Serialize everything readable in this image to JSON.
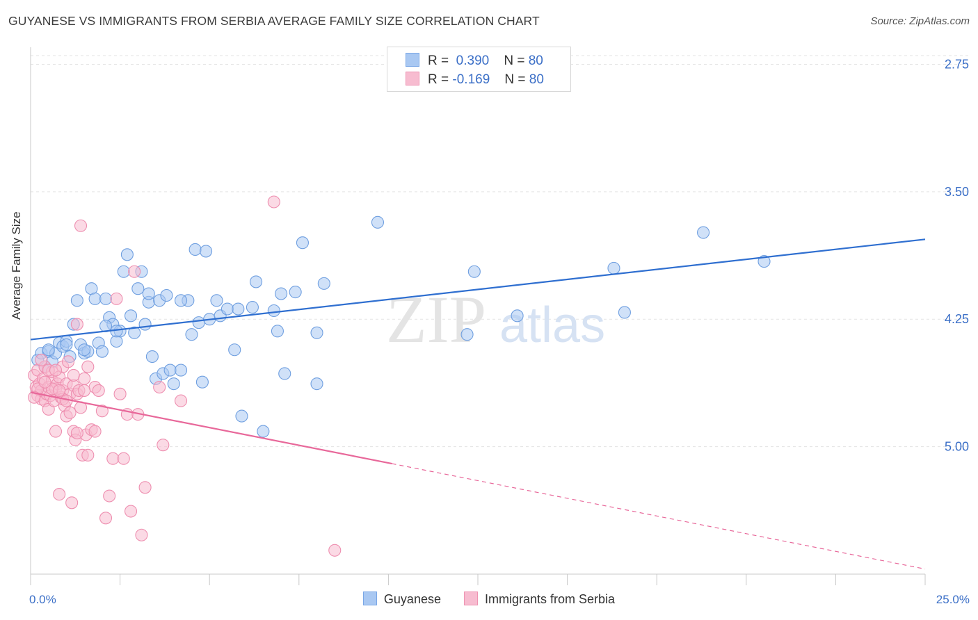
{
  "header": {
    "title": "GUYANESE VS IMMIGRANTS FROM SERBIA AVERAGE FAMILY SIZE CORRELATION CHART",
    "source": "Source: ZipAtlas.com"
  },
  "legend": {
    "r_label": "R =",
    "n_label": "N =",
    "rows": [
      {
        "r": "0.390",
        "n": "80",
        "color": "#a9c8f2",
        "border": "#7aa7e6"
      },
      {
        "r": "-0.169",
        "n": "80",
        "color": "#f7bcd0",
        "border": "#ee93b2"
      }
    ]
  },
  "bottom_legend": [
    {
      "label": "Guyanese",
      "color": "#a9c8f2",
      "border": "#7aa7e6"
    },
    {
      "label": "Immigrants from Serbia",
      "color": "#f7bcd0",
      "border": "#ee93b2"
    }
  ],
  "watermark": {
    "zip": "ZIP",
    "atlas": "atlas"
  },
  "axes": {
    "ylabel": "Average Family Size",
    "x_min_label": "0.0%",
    "x_max_label": "25.0%",
    "y_tick_labels": [
      "5.00",
      "4.25",
      "3.50",
      "2.75"
    ]
  },
  "chart_data": {
    "type": "scatter",
    "xlabel": "",
    "ylabel": "Average Family Size",
    "xlim": [
      0,
      25
    ],
    "ylim": [
      2.0,
      5.1
    ],
    "y_ticks": [
      2.75,
      3.5,
      4.25,
      5.0
    ],
    "grid": true,
    "legend_position": "top-center",
    "series": [
      {
        "name": "Guyanese",
        "color": "#6f9fe0",
        "fill": "#a9c8f2",
        "r": 0.39,
        "n": 80,
        "trend": {
          "x": [
            0,
            25
          ],
          "y": [
            3.38,
            3.97
          ],
          "style": "solid",
          "color": "#2f6fd0"
        },
        "points": [
          [
            0.2,
            3.26
          ],
          [
            0.3,
            3.3
          ],
          [
            0.4,
            3.22
          ],
          [
            0.5,
            3.31
          ],
          [
            0.6,
            3.25
          ],
          [
            0.7,
            3.3
          ],
          [
            0.8,
            3.36
          ],
          [
            0.9,
            3.34
          ],
          [
            1.0,
            3.37
          ],
          [
            1.1,
            3.28
          ],
          [
            1.2,
            3.47
          ],
          [
            1.3,
            3.61
          ],
          [
            1.4,
            3.35
          ],
          [
            1.5,
            3.3
          ],
          [
            1.6,
            3.31
          ],
          [
            1.7,
            3.68
          ],
          [
            1.8,
            3.62
          ],
          [
            1.9,
            3.36
          ],
          [
            2.0,
            3.31
          ],
          [
            2.1,
            3.62
          ],
          [
            2.2,
            3.51
          ],
          [
            2.3,
            3.47
          ],
          [
            2.4,
            3.37
          ],
          [
            2.5,
            3.43
          ],
          [
            2.6,
            3.78
          ],
          [
            2.7,
            3.88
          ],
          [
            2.8,
            3.52
          ],
          [
            2.9,
            3.42
          ],
          [
            3.0,
            3.68
          ],
          [
            3.1,
            3.78
          ],
          [
            3.2,
            3.47
          ],
          [
            3.3,
            3.6
          ],
          [
            3.4,
            3.28
          ],
          [
            3.5,
            3.15
          ],
          [
            3.6,
            3.61
          ],
          [
            3.7,
            3.18
          ],
          [
            3.8,
            3.64
          ],
          [
            3.9,
            3.2
          ],
          [
            4.0,
            3.12
          ],
          [
            4.2,
            3.2
          ],
          [
            4.4,
            3.61
          ],
          [
            4.5,
            3.41
          ],
          [
            4.6,
            3.91
          ],
          [
            4.7,
            3.48
          ],
          [
            4.8,
            3.13
          ],
          [
            4.9,
            3.9
          ],
          [
            5.0,
            3.5
          ],
          [
            5.2,
            3.61
          ],
          [
            5.3,
            3.52
          ],
          [
            5.5,
            3.56
          ],
          [
            5.7,
            3.32
          ],
          [
            5.8,
            3.56
          ],
          [
            5.9,
            2.93
          ],
          [
            6.2,
            3.57
          ],
          [
            6.3,
            3.72
          ],
          [
            6.5,
            2.84
          ],
          [
            6.8,
            3.55
          ],
          [
            6.9,
            3.43
          ],
          [
            7.0,
            3.65
          ],
          [
            7.1,
            3.18
          ],
          [
            7.4,
            3.66
          ],
          [
            7.6,
            3.95
          ],
          [
            8.0,
            3.12
          ],
          [
            8.0,
            3.42
          ],
          [
            8.2,
            3.71
          ],
          [
            9.7,
            4.07
          ],
          [
            12.2,
            3.41
          ],
          [
            12.4,
            3.78
          ],
          [
            13.6,
            3.52
          ],
          [
            16.3,
            3.8
          ],
          [
            16.6,
            3.54
          ],
          [
            18.8,
            4.01
          ],
          [
            20.5,
            3.84
          ],
          [
            0.5,
            3.32
          ],
          [
            1.0,
            3.35
          ],
          [
            1.5,
            3.32
          ],
          [
            2.4,
            3.43
          ],
          [
            3.3,
            3.65
          ],
          [
            4.2,
            3.61
          ],
          [
            2.1,
            3.46
          ]
        ]
      },
      {
        "name": "Immigrants from Serbia",
        "color": "#ee8fb0",
        "fill": "#f7bcd0",
        "r": -0.169,
        "n": 80,
        "trend": {
          "x": [
            0,
            10.1
          ],
          "y": [
            3.07,
            2.65
          ],
          "style": "solid",
          "color": "#e8689a",
          "dash_to": [
            25,
            2.03
          ]
        },
        "points": [
          [
            0.1,
            3.17
          ],
          [
            0.15,
            3.1
          ],
          [
            0.2,
            3.05
          ],
          [
            0.2,
            3.2
          ],
          [
            0.25,
            3.12
          ],
          [
            0.3,
            3.03
          ],
          [
            0.3,
            3.08
          ],
          [
            0.35,
            3.15
          ],
          [
            0.4,
            3.02
          ],
          [
            0.4,
            3.22
          ],
          [
            0.45,
            3.06
          ],
          [
            0.5,
            3.1
          ],
          [
            0.5,
            2.97
          ],
          [
            0.55,
            3.05
          ],
          [
            0.6,
            3.14
          ],
          [
            0.6,
            3.19
          ],
          [
            0.65,
            3.02
          ],
          [
            0.7,
            3.09
          ],
          [
            0.7,
            2.84
          ],
          [
            0.75,
            3.12
          ],
          [
            0.8,
            3.16
          ],
          [
            0.8,
            2.47
          ],
          [
            0.85,
            3.04
          ],
          [
            0.9,
            3.08
          ],
          [
            0.9,
            3.22
          ],
          [
            0.95,
            2.99
          ],
          [
            1.0,
            3.12
          ],
          [
            1.0,
            2.93
          ],
          [
            1.05,
            3.25
          ],
          [
            1.1,
            3.06
          ],
          [
            1.1,
            2.95
          ],
          [
            1.15,
            2.42
          ],
          [
            1.2,
            3.11
          ],
          [
            1.2,
            2.84
          ],
          [
            1.25,
            2.79
          ],
          [
            1.3,
            3.06
          ],
          [
            1.3,
            3.47
          ],
          [
            1.35,
            3.08
          ],
          [
            1.4,
            2.98
          ],
          [
            1.4,
            4.05
          ],
          [
            1.45,
            2.7
          ],
          [
            1.5,
            3.15
          ],
          [
            1.55,
            2.82
          ],
          [
            1.6,
            2.7
          ],
          [
            1.6,
            3.22
          ],
          [
            1.7,
            2.85
          ],
          [
            1.8,
            3.1
          ],
          [
            1.9,
            3.08
          ],
          [
            2.0,
            2.96
          ],
          [
            2.1,
            2.33
          ],
          [
            2.2,
            2.46
          ],
          [
            2.3,
            2.68
          ],
          [
            2.4,
            3.62
          ],
          [
            2.5,
            3.06
          ],
          [
            2.6,
            2.68
          ],
          [
            2.7,
            2.94
          ],
          [
            2.8,
            2.37
          ],
          [
            2.9,
            3.78
          ],
          [
            3.0,
            2.94
          ],
          [
            3.1,
            2.23
          ],
          [
            3.2,
            2.51
          ],
          [
            3.6,
            3.1
          ],
          [
            3.7,
            2.76
          ],
          [
            4.2,
            3.02
          ],
          [
            6.8,
            4.19
          ],
          [
            8.5,
            2.14
          ],
          [
            0.3,
            3.26
          ],
          [
            0.6,
            3.09
          ],
          [
            0.9,
            3.03
          ],
          [
            1.2,
            3.17
          ],
          [
            0.2,
            3.09
          ],
          [
            0.5,
            3.2
          ],
          [
            0.8,
            3.08
          ],
          [
            1.5,
            3.08
          ],
          [
            0.4,
            3.13
          ],
          [
            0.7,
            3.2
          ],
          [
            1.0,
            3.02
          ],
          [
            1.3,
            2.83
          ],
          [
            1.8,
            2.84
          ],
          [
            0.1,
            3.04
          ]
        ]
      }
    ]
  }
}
